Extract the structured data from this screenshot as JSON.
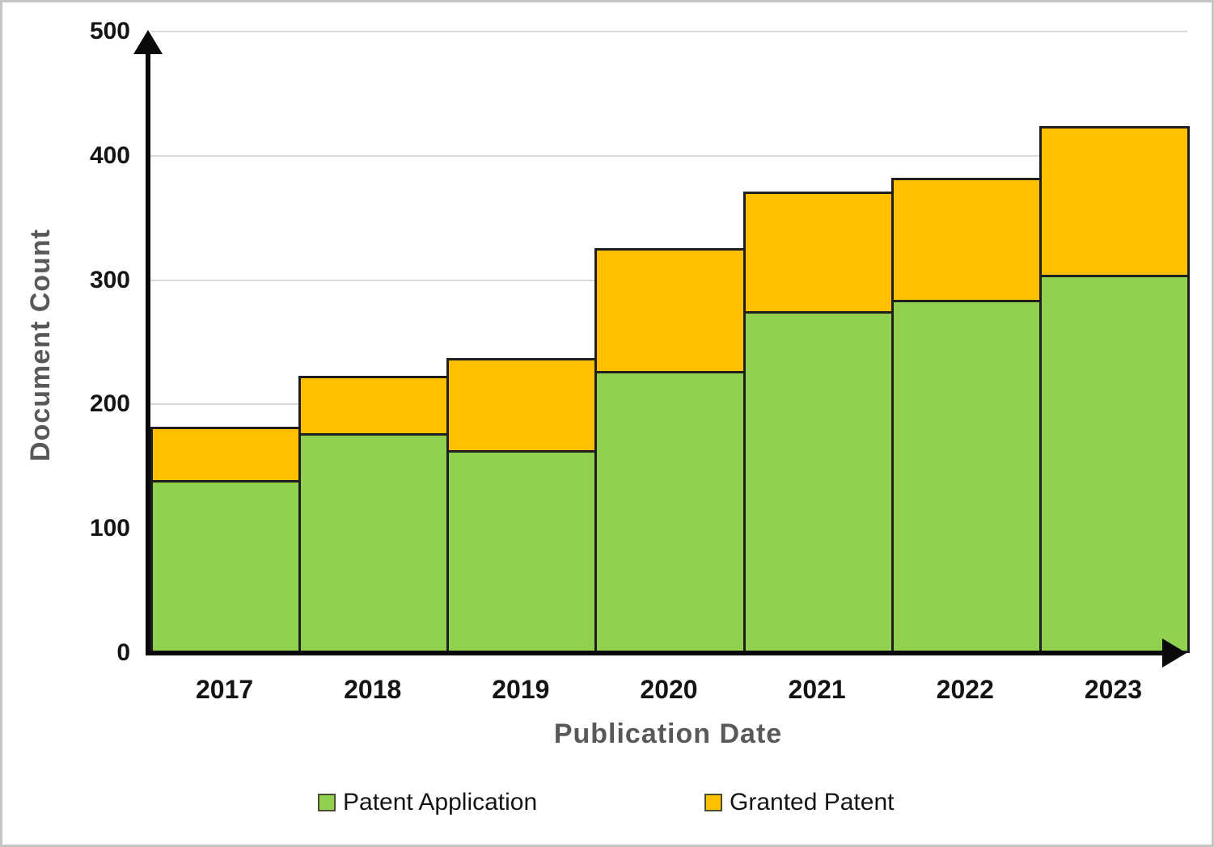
{
  "chart_data": {
    "type": "bar",
    "stacked": true,
    "title": "",
    "xlabel": "Publication Date",
    "ylabel": "Document Count",
    "categories": [
      "2017",
      "2018",
      "2019",
      "2020",
      "2021",
      "2022",
      "2023"
    ],
    "series": [
      {
        "name": "Patent Application",
        "color": "#92D050",
        "values": [
          141,
          179,
          165,
          229,
          277,
          286,
          306
        ]
      },
      {
        "name": "Granted Patent",
        "color": "#FFC000",
        "values": [
          41,
          44,
          72,
          97,
          94,
          96,
          118
        ]
      }
    ],
    "stacked_totals": [
      182,
      223,
      237,
      326,
      371,
      382,
      424
    ],
    "ylim": [
      0,
      500
    ],
    "yticks": [
      0,
      100,
      200,
      300,
      400,
      500
    ],
    "grid": "horizontal",
    "legend_position": "bottom",
    "colors": {
      "grid": "#d9d9d9",
      "axis": "#0a0a0a",
      "bar_border": "#1f1f1f",
      "tick_text": "#141414",
      "axis_title_text": "#595959"
    }
  }
}
